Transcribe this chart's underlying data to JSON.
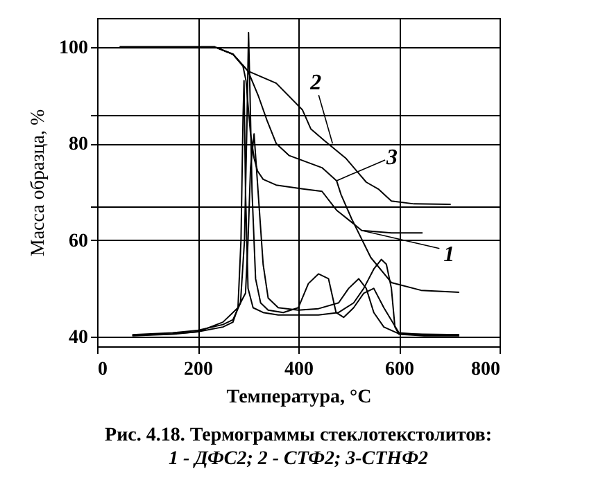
{
  "chart_data": {
    "type": "line",
    "title": "Рис. 4.18. Термограммы стеклотекстолитов:",
    "subtitle": "1 - ДФС2; 2 - СТФ2; 3-СТНФ2",
    "xlabel": "Температура, °C",
    "ylabel": "Масса  образца, %",
    "xlim": [
      0,
      800
    ],
    "xticks": [
      0,
      200,
      400,
      600,
      800
    ],
    "ylim": [
      38,
      106
    ],
    "yticks": [
      40,
      60,
      {
        "value": 67,
        "label": null
      },
      80,
      {
        "value": 86,
        "label": null
      },
      100
    ],
    "grid": true,
    "series": [
      {
        "color": "#000000",
        "x": [
          45,
          150,
          234,
          270,
          300,
          356,
          408,
          425,
          453,
          494,
          535,
          560,
          585,
          630,
          703
        ],
        "values": [
          100,
          100,
          100,
          98.5,
          95,
          92.5,
          87,
          83,
          80.5,
          77,
          72,
          70.5,
          68.1,
          67.5,
          67.4
        ]
      },
      {
        "color": "#000000",
        "x": [
          45,
          150,
          234,
          270,
          290,
          296,
          300,
          305,
          312,
          319,
          330,
          356,
          409,
          447,
          476,
          506,
          526,
          585,
          647
        ],
        "values": [
          100,
          100,
          100,
          98.5,
          96,
          93,
          88,
          82,
          77,
          74.3,
          72.6,
          71.4,
          70.6,
          70.1,
          66.2,
          63.7,
          62,
          61.5,
          61.5
        ]
      },
      {
        "color": "#000000",
        "x": [
          45,
          150,
          234,
          270,
          300,
          320,
          338,
          356,
          382,
          447,
          476,
          485,
          506,
          544,
          585,
          644,
          720
        ],
        "values": [
          100,
          100,
          100,
          98.5,
          95,
          90,
          84.7,
          80,
          77.5,
          75,
          72.3,
          69.4,
          64.4,
          56.4,
          51.2,
          49.6,
          49.2
        ]
      },
      {
        "color": "#000000",
        "x": [
          70,
          150,
          200,
          250,
          270,
          285,
          293,
          298,
          301,
          304,
          308,
          315,
          325,
          340,
          370,
          400,
          420,
          440,
          460,
          475,
          490,
          510,
          530,
          550,
          570,
          600,
          650,
          720
        ],
        "values": [
          40.4,
          40.8,
          41.3,
          42.5,
          43.5,
          47,
          60,
          85,
          103,
          90,
          70,
          52,
          47,
          45.5,
          45,
          46,
          51,
          53,
          52,
          45,
          44,
          46,
          49,
          50,
          46,
          40.8,
          40.4,
          40.4
        ]
      },
      {
        "color": "#000000",
        "x": [
          70,
          150,
          200,
          250,
          270,
          280,
          286,
          290,
          292,
          295,
          300,
          310,
          330,
          360,
          400,
          440,
          480,
          510,
          530,
          550,
          565,
          575,
          585,
          592,
          600,
          650,
          720
        ],
        "values": [
          40.2,
          40.5,
          41,
          42,
          43,
          46,
          60,
          85,
          93,
          70,
          50,
          46,
          45,
          44.5,
          44.5,
          44.5,
          45,
          47,
          50,
          54,
          56,
          55,
          50,
          42,
          40.5,
          40.2,
          40.2
        ]
      },
      {
        "color": "#000000",
        "x": [
          70,
          150,
          200,
          250,
          280,
          295,
          300,
          305,
          312,
          320,
          330,
          340,
          360,
          400,
          440,
          480,
          500,
          520,
          535,
          550,
          570,
          600,
          720
        ],
        "values": [
          40.3,
          40.6,
          41,
          43,
          46,
          49,
          60,
          75,
          82,
          70,
          55,
          48,
          46,
          45.5,
          45.8,
          47,
          50,
          52,
          50,
          45,
          42,
          40.6,
          40.4
        ]
      }
    ],
    "annotations": [
      {
        "text": "2",
        "x": 468,
        "y": 80
      },
      {
        "text": "3",
        "x": 476,
        "y": 72.3
      },
      {
        "text": "1",
        "x": 526,
        "y": 62
      }
    ]
  }
}
